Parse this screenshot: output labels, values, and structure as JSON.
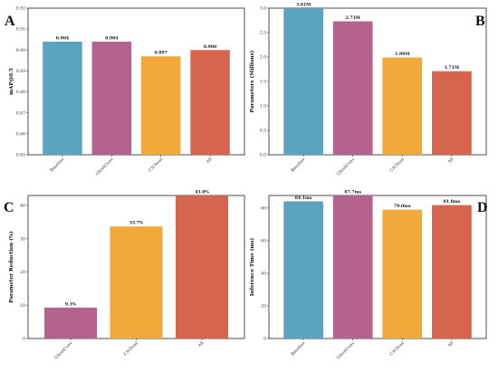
{
  "colors": {
    "baseline": "#5aa3c1",
    "ghostconv": "#b5628f",
    "c3ghost": "#f2a93b",
    "all": "#d6654d"
  },
  "chart_data": [
    {
      "panel": "A",
      "type": "bar",
      "categories": [
        "Baseline",
        "GhostConv",
        "C3Ghost",
        "All"
      ],
      "values": [
        0.904,
        0.904,
        0.897,
        0.9
      ],
      "data_labels": [
        "0.904",
        "0.904",
        "0.897",
        "0.900"
      ],
      "ylabel": "mAP@0.5",
      "xlabel": "",
      "ylim": [
        0.85,
        0.92
      ],
      "yticks": [
        0.85,
        0.86,
        0.87,
        0.88,
        0.89,
        0.9,
        0.91,
        0.92
      ],
      "ytick_labels": [
        "0.85",
        "0.86",
        "0.87",
        "0.88",
        "0.89",
        "0.90",
        "0.91",
        "0.92"
      ],
      "grid": false,
      "color_keys": [
        "baseline",
        "ghostconv",
        "c3ghost",
        "all"
      ]
    },
    {
      "panel": "B",
      "type": "bar",
      "categories": [
        "Baseline",
        "GhostConv",
        "C3Ghost",
        "All"
      ],
      "values": [
        3.01,
        2.73,
        1.99,
        1.71
      ],
      "data_labels": [
        "3.01M",
        "2.73M",
        "1.99M",
        "1.71M"
      ],
      "ylabel": "Parameters (Millions)",
      "xlabel": "",
      "ylim": [
        0,
        3.0
      ],
      "yticks": [
        0,
        0.5,
        1.0,
        1.5,
        2.0,
        2.5,
        3.0
      ],
      "ytick_labels": [
        "0.0",
        "0.5",
        "1.0",
        "1.5",
        "2.0",
        "2.5",
        "3.0"
      ],
      "grid": false,
      "color_keys": [
        "baseline",
        "ghostconv",
        "c3ghost",
        "all"
      ]
    },
    {
      "panel": "C",
      "type": "bar",
      "categories": [
        "GhostConv",
        "C3Ghost",
        "All"
      ],
      "values": [
        9.3,
        33.7,
        43.0
      ],
      "data_labels": [
        "9.3%",
        "33.7%",
        "43.0%"
      ],
      "ylabel": "Parameter Reduction (%)",
      "xlabel": "",
      "ylim": [
        0,
        43
      ],
      "yticks": [
        0,
        10,
        20,
        30,
        40
      ],
      "ytick_labels": [
        "0",
        "10",
        "20",
        "30",
        "40"
      ],
      "grid": false,
      "color_keys": [
        "ghostconv",
        "c3ghost",
        "all"
      ]
    },
    {
      "panel": "D",
      "type": "bar",
      "categories": [
        "Baseline",
        "GhostConv",
        "C3Ghost",
        "All"
      ],
      "values": [
        84.1,
        87.7,
        79.0,
        81.8
      ],
      "data_labels": [
        "84.1ms",
        "87.7ms",
        "79.0ms",
        "81.8ms"
      ],
      "ylabel": "Inference Time (ms)",
      "xlabel": "",
      "ylim": [
        0,
        87.7
      ],
      "yticks": [
        0,
        20,
        40,
        60,
        80
      ],
      "ytick_labels": [
        "0",
        "20",
        "40",
        "60",
        "80"
      ],
      "grid": false,
      "color_keys": [
        "baseline",
        "ghostconv",
        "c3ghost",
        "all"
      ]
    }
  ]
}
